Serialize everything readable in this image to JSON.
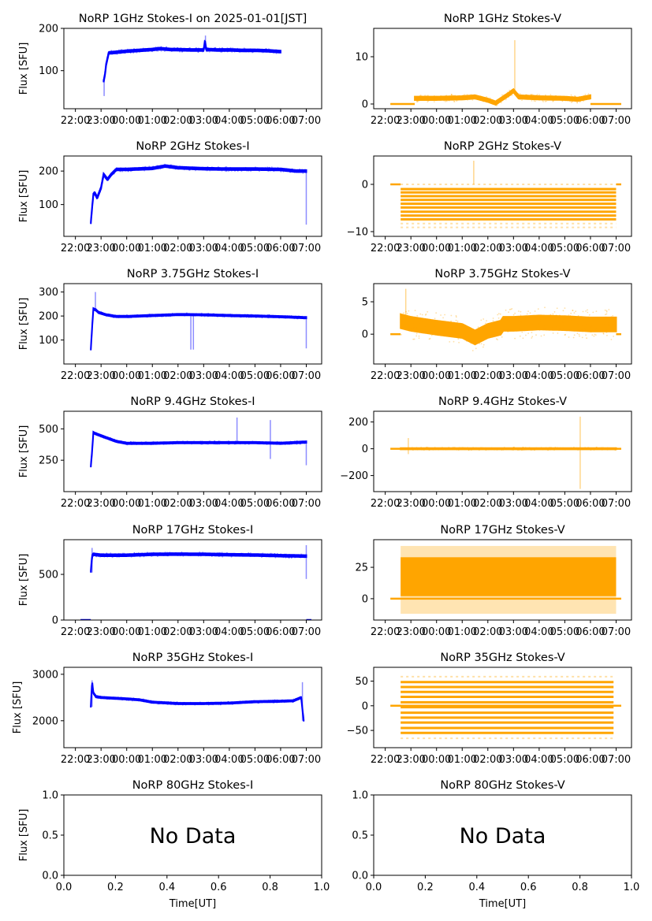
{
  "figure": {
    "time_tick_labels": [
      "22:00",
      "23:00",
      "00:00",
      "01:00",
      "02:00",
      "03:00",
      "04:00",
      "05:00",
      "06:00",
      "07:00"
    ],
    "ylabel": "Flux [SFU]",
    "xlabel": "Time[UT]",
    "no_data_text": "No Data"
  },
  "chart_data": [
    {
      "id": "p1i",
      "type": "scatter",
      "title": "NoRP 1GHz Stokes-I on 2025-01-01[JST]",
      "ylabel": "Flux [SFU]",
      "color": "#0000ff",
      "ylim": [
        10,
        200
      ],
      "yticks": [
        100,
        200
      ],
      "time_range": [
        "22:00",
        "07:00"
      ],
      "trace": {
        "start": 23.1,
        "end": 30.0,
        "x": [
          23.1,
          23.15,
          23.2,
          23.3,
          23.5,
          24,
          24.5,
          25,
          25.3,
          25.7,
          26.5,
          27,
          27.05,
          27.1,
          27.5,
          28,
          28.5,
          29,
          29.5,
          30
        ],
        "y": [
          75,
          90,
          115,
          142,
          143,
          146,
          148,
          150,
          152,
          150,
          149,
          149,
          170,
          150,
          149,
          149,
          148,
          148,
          147,
          145
        ],
        "spread": 4
      },
      "spikes": [
        {
          "x": 23.12,
          "from": 40,
          "to": 80
        },
        {
          "x": 27.07,
          "from": 150,
          "to": 183
        }
      ]
    },
    {
      "id": "p1v",
      "type": "scatter",
      "title": "NoRP 1GHz Stokes-V",
      "ylabel": "",
      "color": "#ffa500",
      "ylim": [
        -1,
        16
      ],
      "yticks": [
        0,
        10
      ],
      "time_range": [
        "22:00",
        "07:00"
      ],
      "flat": [
        [
          22.2,
          23.15,
          0
        ],
        [
          30.0,
          31.2,
          0
        ]
      ],
      "trace": {
        "start": 23.15,
        "end": 30.0,
        "x": [
          23.15,
          24,
          25,
          25.5,
          26,
          26.3,
          26.8,
          27,
          27.2,
          28,
          29,
          29.5,
          30
        ],
        "y": [
          1.2,
          1.2,
          1.3,
          1.5,
          0.8,
          0.2,
          2.0,
          2.8,
          1.5,
          1.3,
          1.2,
          1.0,
          1.5
        ],
        "spread": 0.6
      },
      "spikes": [
        {
          "x": 27.05,
          "from": 3,
          "to": 13.5
        }
      ]
    },
    {
      "id": "p2i",
      "type": "scatter",
      "title": "NoRP 2GHz Stokes-I",
      "ylabel": "Flux [SFU]",
      "color": "#0000ff",
      "ylim": [
        5,
        245
      ],
      "yticks": [
        100,
        200
      ],
      "time_range": [
        "22:00",
        "07:00"
      ],
      "trace": {
        "start": 22.6,
        "end": 31.0,
        "x": [
          22.6,
          22.65,
          22.7,
          22.75,
          22.85,
          23.0,
          23.1,
          23.25,
          23.4,
          23.6,
          24,
          25,
          25.5,
          26,
          27,
          28,
          29,
          30,
          30.6,
          31
        ],
        "y": [
          45,
          90,
          130,
          135,
          120,
          150,
          190,
          175,
          190,
          205,
          205,
          208,
          215,
          210,
          207,
          206,
          206,
          205,
          200,
          200
        ],
        "spread": 5
      },
      "spikes": [
        {
          "x": 31.0,
          "from": 40,
          "to": 200
        }
      ]
    },
    {
      "id": "p2v",
      "type": "scatter",
      "title": "NoRP 2GHz Stokes-V",
      "ylabel": "",
      "color": "#ffa500",
      "ylim": [
        -11,
        6
      ],
      "yticks": [
        0,
        -10
      ],
      "time_range": [
        "22:00",
        "07:00"
      ],
      "flat": [
        [
          22.2,
          22.6,
          0
        ],
        [
          31.0,
          31.2,
          0
        ]
      ],
      "bands": {
        "start": 22.6,
        "end": 31.0,
        "levels": [
          -1,
          -1.7,
          -2.5,
          -3.3,
          -4.1,
          -4.9,
          -5.8,
          -6.6,
          -7.4
        ],
        "faint": [
          0,
          -8.3,
          -9.1
        ]
      },
      "spikes": [
        {
          "x": 25.45,
          "from": 0,
          "to": 5
        }
      ]
    },
    {
      "id": "p375i",
      "type": "scatter",
      "title": "NoRP 3.75GHz Stokes-I",
      "ylabel": "Flux [SFU]",
      "color": "#0000ff",
      "ylim": [
        0,
        335
      ],
      "yticks": [
        100,
        200,
        300
      ],
      "time_range": [
        "22:00",
        "07:00"
      ],
      "trace": {
        "start": 22.6,
        "end": 31.0,
        "x": [
          22.6,
          22.65,
          22.7,
          22.8,
          22.9,
          23.2,
          23.6,
          24,
          25,
          26,
          27,
          28,
          29,
          30,
          31
        ],
        "y": [
          60,
          150,
          230,
          225,
          215,
          205,
          198,
          198,
          202,
          206,
          205,
          202,
          200,
          197,
          193
        ],
        "spread": 5
      },
      "spikes": [
        {
          "x": 22.78,
          "from": 225,
          "to": 300
        },
        {
          "x": 26.5,
          "from": 60,
          "to": 205
        },
        {
          "x": 26.6,
          "from": 60,
          "to": 205
        },
        {
          "x": 31.0,
          "from": 65,
          "to": 195
        }
      ]
    },
    {
      "id": "p375v",
      "type": "scatter",
      "title": "NoRP 3.75GHz Stokes-V",
      "ylabel": "",
      "color": "#ffa500",
      "ylim": [
        -4.6,
        7.8
      ],
      "yticks": [
        0,
        5
      ],
      "time_range": [
        "22:00",
        "07:00"
      ],
      "flat": [
        [
          22.2,
          22.6,
          0
        ],
        [
          31.0,
          31.2,
          0
        ]
      ],
      "trace": {
        "start": 22.6,
        "end": 31.0,
        "x": [
          22.6,
          23,
          24,
          25,
          25.5,
          26,
          26.5,
          26.6,
          27,
          28,
          29,
          30,
          31
        ],
        "y": [
          2.0,
          1.6,
          1.0,
          0.5,
          -0.5,
          0.5,
          1.0,
          1.6,
          1.6,
          1.8,
          1.7,
          1.5,
          1.5
        ],
        "spread": 1.8
      },
      "spikes": [
        {
          "x": 22.8,
          "from": 3,
          "to": 7
        }
      ]
    },
    {
      "id": "p94i",
      "type": "scatter",
      "title": "NoRP 9.4GHz Stokes-I",
      "ylabel": "Flux [SFU]",
      "color": "#0000ff",
      "ylim": [
        0,
        640
      ],
      "yticks": [
        250,
        500
      ],
      "time_range": [
        "22:00",
        "07:00"
      ],
      "trace": {
        "start": 22.6,
        "end": 31.0,
        "x": [
          22.6,
          22.65,
          22.7,
          22.8,
          23.2,
          23.6,
          24,
          25,
          26,
          27,
          28,
          29,
          30,
          31
        ],
        "y": [
          200,
          320,
          470,
          460,
          430,
          400,
          385,
          385,
          390,
          390,
          390,
          390,
          385,
          395
        ],
        "spread": 10
      },
      "spikes": [
        {
          "x": 28.3,
          "from": 390,
          "to": 590
        },
        {
          "x": 29.6,
          "from": 260,
          "to": 570
        },
        {
          "x": 31.0,
          "from": 210,
          "to": 400
        }
      ]
    },
    {
      "id": "p94v",
      "type": "scatter",
      "title": "NoRP 9.4GHz Stokes-V",
      "ylabel": "",
      "color": "#ffa500",
      "ylim": [
        -320,
        280
      ],
      "yticks": [
        -200,
        0,
        200
      ],
      "time_range": [
        "22:00",
        "07:00"
      ],
      "flat": [
        [
          22.2,
          31.2,
          0
        ]
      ],
      "trace": {
        "start": 22.6,
        "end": 31.0,
        "x": [
          22.6,
          31.0
        ],
        "y": [
          0,
          0
        ],
        "spread": 8
      },
      "spikes": [
        {
          "x": 22.9,
          "from": -40,
          "to": 80
        },
        {
          "x": 29.6,
          "from": -300,
          "to": 240
        }
      ]
    },
    {
      "id": "p17i",
      "type": "scatter",
      "title": "NoRP 17GHz Stokes-I",
      "ylabel": "Flux [SFU]",
      "color": "#0000ff",
      "ylim": [
        0,
        880
      ],
      "yticks": [
        0,
        500
      ],
      "time_range": [
        "22:00",
        "07:00"
      ],
      "flat": [
        [
          22.2,
          22.6,
          0
        ],
        [
          31.0,
          31.2,
          0
        ]
      ],
      "trace": {
        "start": 22.6,
        "end": 31.0,
        "x": [
          22.6,
          22.65,
          22.7,
          23,
          24,
          25,
          26,
          27,
          28,
          29,
          30,
          31
        ],
        "y": [
          530,
          700,
          720,
          710,
          710,
          720,
          722,
          720,
          715,
          712,
          705,
          700
        ],
        "spread": 18
      },
      "spikes": [
        {
          "x": 22.65,
          "from": 520,
          "to": 790
        },
        {
          "x": 31.0,
          "from": 450,
          "to": 820
        }
      ]
    },
    {
      "id": "p17v",
      "type": "scatter",
      "title": "NoRP 17GHz Stokes-V",
      "ylabel": "",
      "color": "#ffa500",
      "ylim": [
        -17,
        47
      ],
      "yticks": [
        0,
        25
      ],
      "time_range": [
        "22:00",
        "07:00"
      ],
      "flat": [
        [
          22.2,
          31.2,
          0
        ]
      ],
      "bands_block": {
        "start": 22.6,
        "end": 31.0,
        "from": 2,
        "to": 33,
        "faint_from": -12,
        "faint_to": 42
      }
    },
    {
      "id": "p35i",
      "type": "scatter",
      "title": "NoRP 35GHz Stokes-I",
      "ylabel": "Flux [SFU]",
      "color": "#0000ff",
      "ylim": [
        1420,
        3150
      ],
      "yticks": [
        2000,
        3000
      ],
      "time_range": [
        "22:00",
        "07:00"
      ],
      "trace": {
        "start": 22.6,
        "end": 30.9,
        "x": [
          22.6,
          22.65,
          22.7,
          22.8,
          23,
          24,
          24.5,
          25,
          26,
          27,
          28,
          29,
          30,
          30.5,
          30.8,
          30.9
        ],
        "y": [
          2300,
          2850,
          2600,
          2520,
          2500,
          2470,
          2450,
          2400,
          2370,
          2370,
          2380,
          2410,
          2420,
          2430,
          2500,
          2000
        ],
        "spread": 25
      },
      "spikes": [
        {
          "x": 22.65,
          "from": 2300,
          "to": 2870
        },
        {
          "x": 30.85,
          "from": 2000,
          "to": 2830
        }
      ]
    },
    {
      "id": "p35v",
      "type": "scatter",
      "title": "NoRP 35GHz Stokes-V",
      "ylabel": "",
      "color": "#ffa500",
      "ylim": [
        -85,
        78
      ],
      "yticks": [
        -50,
        0,
        50
      ],
      "time_range": [
        "22:00",
        "07:00"
      ],
      "flat": [
        [
          22.2,
          31.2,
          0
        ]
      ],
      "bands": {
        "start": 22.6,
        "end": 30.9,
        "levels": [
          48,
          38,
          28,
          18,
          7,
          -3,
          -14,
          -24,
          -34,
          -45,
          -55
        ],
        "faint": [
          59,
          -66
        ]
      }
    },
    {
      "id": "p80i",
      "type": "empty",
      "title": "NoRP 80GHz Stokes-I",
      "ylabel": "Flux [SFU]",
      "xlabel": "Time[UT]",
      "xlim": [
        0,
        1
      ],
      "ylim": [
        0,
        1
      ],
      "xticks": [
        "0.0",
        "0.2",
        "0.4",
        "0.6",
        "0.8",
        "1.0"
      ],
      "yticks": [
        "0.0",
        "0.5",
        "1.0"
      ],
      "annotation": "No Data"
    },
    {
      "id": "p80v",
      "type": "empty",
      "title": "NoRP 80GHz Stokes-V",
      "ylabel": "",
      "xlabel": "Time[UT]",
      "xlim": [
        0,
        1
      ],
      "ylim": [
        0,
        1
      ],
      "xticks": [
        "0.0",
        "0.2",
        "0.4",
        "0.6",
        "0.8",
        "1.0"
      ],
      "yticks": [
        "0.0",
        "0.5",
        "1.0"
      ],
      "annotation": "No Data"
    }
  ]
}
